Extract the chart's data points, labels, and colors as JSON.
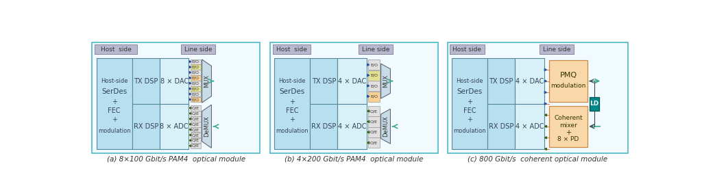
{
  "fig_width": 10.24,
  "fig_height": 2.69,
  "bg_color": "#ffffff",
  "outer_border_color": "#4db8c8",
  "label_bg_color": "#b8b8d0",
  "host_block_color": "#b8dff0",
  "dac_adc_block_color": "#d8f0f8",
  "mux_color": "#c8dce8",
  "pmq_color": "#f8d8a8",
  "coherent_color": "#f8d8a8",
  "ld_color": "#008888",
  "arrow_tx_color": "#f08040",
  "mux_arrow_color": "#40a890",
  "captions": [
    "(a) 8×100 Gbit/s PAM4  optical module",
    "(b) 4×200 Gbit/s PAM4  optical module",
    "(c) 800 Gbit/s  coherent optical module"
  ],
  "eo_colors_8": [
    "#e0e0e0",
    "#e0e090",
    "#e0e0e0",
    "#f8d090",
    "#e0e0e0",
    "#e0e090",
    "#e0e0e0",
    "#f8d090"
  ],
  "eo_colors_4": [
    "#e0e0e0",
    "#e0e090",
    "#e0e0e0",
    "#f8d090"
  ]
}
